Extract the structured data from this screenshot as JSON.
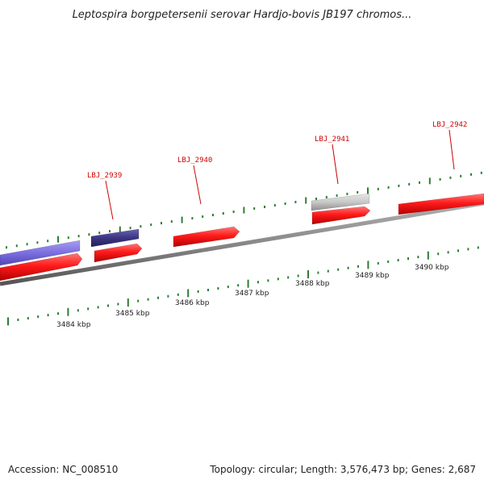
{
  "title": "Leptospira borgpetersenii serovar Hardjo-bovis JB197 chromos...",
  "footer": {
    "accession": "Accession: NC_008510",
    "stats": "Topology: circular; Length: 3,576,473 bp; Genes: 2,687"
  },
  "colors": {
    "background": "#ffffff",
    "backbone": "#888888",
    "tick": "#2e7d32",
    "forward_gene": "#ff1a1a",
    "label": "#cc0000",
    "blue_feature": "#7b6fe0",
    "navy_feature": "#3c3584",
    "gray_feature": "#c8c8c8"
  },
  "ruler": {
    "labels": [
      "3484 kbp",
      "3485 kbp",
      "3486 kbp",
      "3487 kbp",
      "3488 kbp",
      "3489 kbp",
      "3490 kbp"
    ]
  },
  "genes": [
    {
      "label": "",
      "strand": "+",
      "type": "cds",
      "color": "forward_gene"
    },
    {
      "label": "",
      "strand": "+",
      "type": "misc",
      "color": "blue_feature"
    },
    {
      "label": "LBJ_2939",
      "strand": "+",
      "type": "cds",
      "color": "forward_gene"
    },
    {
      "label": "",
      "strand": "+",
      "type": "misc",
      "color": "navy_feature"
    },
    {
      "label": "LBJ_2940",
      "strand": "+",
      "type": "cds",
      "color": "forward_gene"
    },
    {
      "label": "LBJ_2941",
      "strand": "+",
      "type": "cds",
      "color": "forward_gene"
    },
    {
      "label": "",
      "strand": "+",
      "type": "misc",
      "color": "gray_feature"
    },
    {
      "label": "LBJ_2942",
      "strand": "+",
      "type": "cds",
      "color": "forward_gene"
    }
  ]
}
